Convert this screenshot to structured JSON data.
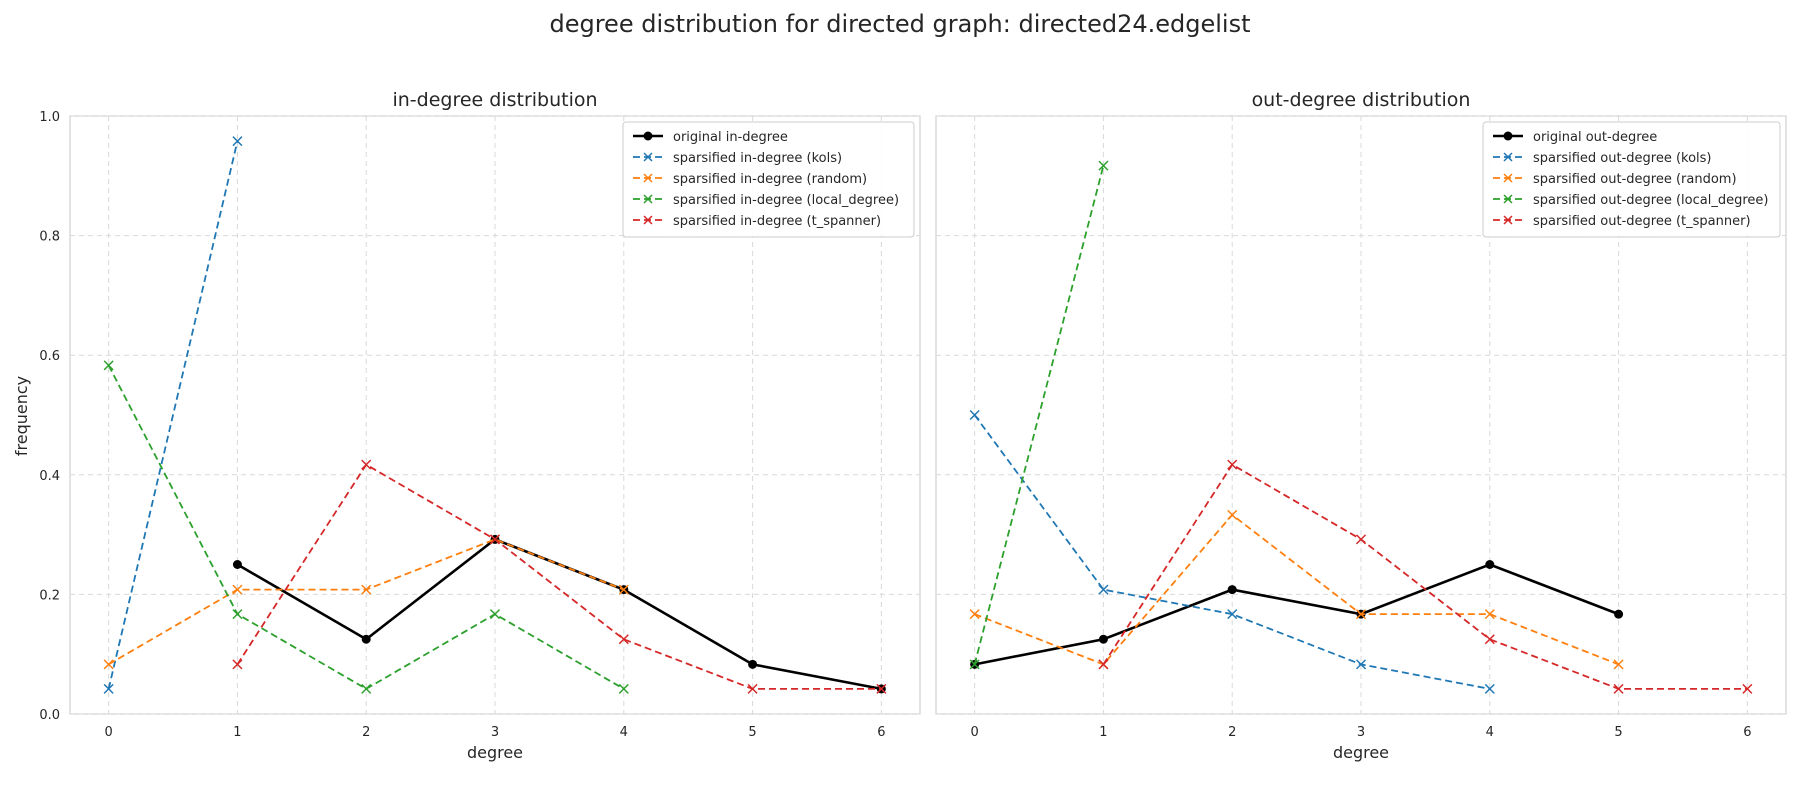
{
  "figure": {
    "suptitle": "degree distribution for directed graph: directed24.edgelist",
    "ylabel": "frequency"
  },
  "chart_data": [
    {
      "type": "line",
      "title": "in-degree distribution",
      "xlabel": "degree",
      "ylabel": "frequency",
      "xlim": [
        -0.3,
        6.3
      ],
      "ylim": [
        0.0,
        1.0
      ],
      "xticks": [
        "0",
        "1",
        "2",
        "3",
        "4",
        "5",
        "6"
      ],
      "yticks": [
        "0.0",
        "0.2",
        "0.4",
        "0.6",
        "0.8",
        "1.0"
      ],
      "grid": true,
      "legend_position": "top-right",
      "series": [
        {
          "name": "original in-degree",
          "color": "#000000",
          "style": "solid",
          "marker": "circle",
          "x": [
            1,
            2,
            3,
            4,
            5,
            6
          ],
          "y": [
            0.25,
            0.125,
            0.292,
            0.208,
            0.083,
            0.042
          ]
        },
        {
          "name": "sparsified in-degree (kols)",
          "color": "#1f77b4",
          "style": "dashed",
          "marker": "x",
          "x": [
            0,
            1
          ],
          "y": [
            0.042,
            0.958
          ]
        },
        {
          "name": "sparsified in-degree (random)",
          "color": "#ff7f0e",
          "style": "dashed",
          "marker": "x",
          "x": [
            0,
            1,
            2,
            3,
            4
          ],
          "y": [
            0.083,
            0.208,
            0.208,
            0.292,
            0.208
          ]
        },
        {
          "name": "sparsified in-degree (local_degree)",
          "color": "#2ca02c",
          "style": "dashed",
          "marker": "x",
          "x": [
            0,
            1,
            2,
            3,
            4
          ],
          "y": [
            0.583,
            0.167,
            0.042,
            0.167,
            0.042
          ]
        },
        {
          "name": "sparsified in-degree (t_spanner)",
          "color": "#d62728",
          "style": "dashed",
          "marker": "x",
          "x": [
            1,
            2,
            3,
            4,
            5,
            6
          ],
          "y": [
            0.083,
            0.417,
            0.292,
            0.125,
            0.042,
            0.042
          ]
        }
      ]
    },
    {
      "type": "line",
      "title": "out-degree distribution",
      "xlabel": "degree",
      "ylabel": "",
      "xlim": [
        -0.3,
        6.3
      ],
      "ylim": [
        0.0,
        1.0
      ],
      "xticks": [
        "0",
        "1",
        "2",
        "3",
        "4",
        "5",
        "6"
      ],
      "yticks": [],
      "grid": true,
      "legend_position": "top-right",
      "series": [
        {
          "name": "original out-degree",
          "color": "#000000",
          "style": "solid",
          "marker": "circle",
          "x": [
            0,
            1,
            2,
            3,
            4,
            5
          ],
          "y": [
            0.083,
            0.125,
            0.208,
            0.167,
            0.25,
            0.167
          ]
        },
        {
          "name": "sparsified out-degree (kols)",
          "color": "#1f77b4",
          "style": "dashed",
          "marker": "x",
          "x": [
            0,
            1,
            2,
            3,
            4
          ],
          "y": [
            0.5,
            0.208,
            0.167,
            0.083,
            0.042
          ]
        },
        {
          "name": "sparsified out-degree (random)",
          "color": "#ff7f0e",
          "style": "dashed",
          "marker": "x",
          "x": [
            0,
            1,
            2,
            3,
            4,
            5
          ],
          "y": [
            0.167,
            0.083,
            0.333,
            0.167,
            0.167,
            0.083
          ]
        },
        {
          "name": "sparsified out-degree (local_degree)",
          "color": "#2ca02c",
          "style": "dashed",
          "marker": "x",
          "x": [
            0,
            1
          ],
          "y": [
            0.083,
            0.917
          ]
        },
        {
          "name": "sparsified out-degree (t_spanner)",
          "color": "#d62728",
          "style": "dashed",
          "marker": "x",
          "x": [
            1,
            2,
            3,
            4,
            5,
            6
          ],
          "y": [
            0.083,
            0.417,
            0.292,
            0.125,
            0.042,
            0.042
          ]
        }
      ]
    }
  ]
}
